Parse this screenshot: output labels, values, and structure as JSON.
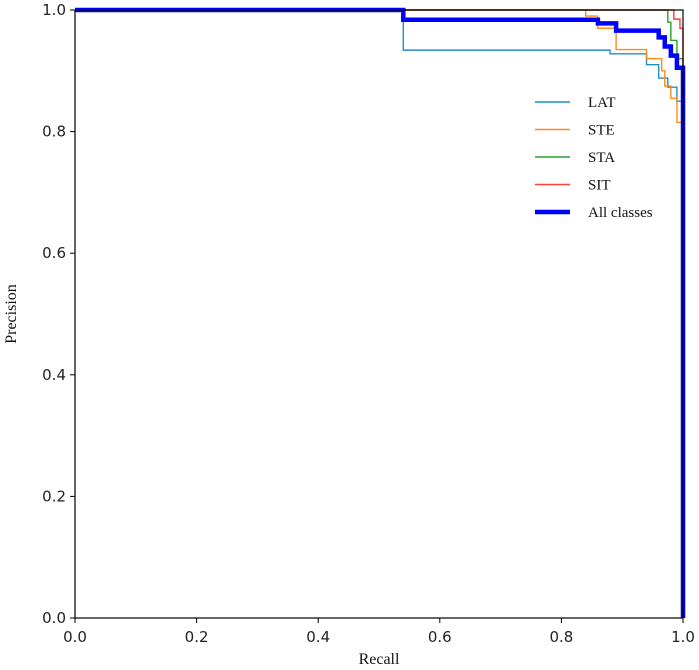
{
  "chart_data": {
    "type": "line",
    "title": "",
    "xlabel": "Recall",
    "ylabel": "Precision",
    "xlim": [
      0.0,
      1.0
    ],
    "ylim": [
      0.0,
      1.0
    ],
    "xticks": [
      "0.0",
      "0.2",
      "0.4",
      "0.6",
      "0.8",
      "1.0"
    ],
    "yticks": [
      "0.0",
      "0.2",
      "0.4",
      "0.6",
      "0.8",
      "1.0"
    ],
    "grid": false,
    "legend_position": "upper-right",
    "series": [
      {
        "name": "LAT",
        "color": "#1f8fc6",
        "bold": false,
        "points": [
          [
            0.0,
            1.0
          ],
          [
            0.54,
            1.0
          ],
          [
            0.54,
            0.934
          ],
          [
            0.88,
            0.934
          ],
          [
            0.88,
            0.928
          ],
          [
            0.94,
            0.928
          ],
          [
            0.94,
            0.91
          ],
          [
            0.96,
            0.91
          ],
          [
            0.96,
            0.888
          ],
          [
            0.975,
            0.888
          ],
          [
            0.975,
            0.873
          ],
          [
            0.99,
            0.873
          ],
          [
            0.99,
            0.85
          ],
          [
            1.0,
            0.85
          ],
          [
            1.0,
            0.0
          ]
        ]
      },
      {
        "name": "STE",
        "color": "#ff8c1a",
        "bold": false,
        "points": [
          [
            0.0,
            1.0
          ],
          [
            0.84,
            1.0
          ],
          [
            0.84,
            0.99
          ],
          [
            0.86,
            0.99
          ],
          [
            0.86,
            0.97
          ],
          [
            0.89,
            0.97
          ],
          [
            0.89,
            0.935
          ],
          [
            0.94,
            0.935
          ],
          [
            0.94,
            0.92
          ],
          [
            0.965,
            0.92
          ],
          [
            0.965,
            0.9
          ],
          [
            0.97,
            0.9
          ],
          [
            0.97,
            0.875
          ],
          [
            0.98,
            0.875
          ],
          [
            0.98,
            0.855
          ],
          [
            0.99,
            0.855
          ],
          [
            0.99,
            0.815
          ],
          [
            1.0,
            0.815
          ],
          [
            1.0,
            0.0
          ]
        ]
      },
      {
        "name": "STA",
        "color": "#2ca02c",
        "bold": false,
        "points": [
          [
            0.0,
            1.0
          ],
          [
            0.975,
            1.0
          ],
          [
            0.975,
            0.98
          ],
          [
            0.98,
            0.98
          ],
          [
            0.98,
            0.95
          ],
          [
            0.99,
            0.95
          ],
          [
            0.99,
            0.92
          ],
          [
            1.0,
            0.92
          ],
          [
            1.0,
            0.0
          ]
        ]
      },
      {
        "name": "SIT",
        "color": "#ff3b3b",
        "bold": false,
        "points": [
          [
            0.0,
            1.0
          ],
          [
            0.985,
            1.0
          ],
          [
            0.985,
            0.985
          ],
          [
            0.995,
            0.985
          ],
          [
            0.995,
            0.97
          ],
          [
            1.0,
            0.97
          ],
          [
            1.0,
            0.0
          ]
        ]
      },
      {
        "name": "All classes",
        "color": "#0000ff",
        "bold": true,
        "points": [
          [
            0.0,
            1.0
          ],
          [
            0.54,
            1.0
          ],
          [
            0.54,
            0.984
          ],
          [
            0.86,
            0.984
          ],
          [
            0.86,
            0.978
          ],
          [
            0.89,
            0.978
          ],
          [
            0.89,
            0.966
          ],
          [
            0.96,
            0.966
          ],
          [
            0.96,
            0.955
          ],
          [
            0.97,
            0.955
          ],
          [
            0.97,
            0.94
          ],
          [
            0.98,
            0.94
          ],
          [
            0.98,
            0.925
          ],
          [
            0.99,
            0.925
          ],
          [
            0.99,
            0.905
          ],
          [
            1.0,
            0.905
          ],
          [
            1.0,
            0.0
          ]
        ]
      }
    ]
  }
}
